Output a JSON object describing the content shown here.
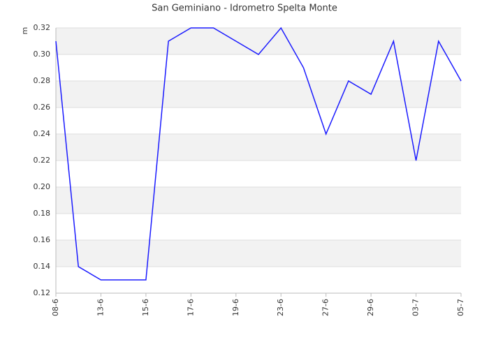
{
  "chart_data": {
    "type": "line",
    "title": "San Geminiano - Idrometro Spelta Monte",
    "y_label": "m",
    "categories": [
      "08-6",
      null,
      "13-6",
      null,
      "15-6",
      null,
      "17-6",
      null,
      "19-6",
      null,
      "23-6",
      null,
      "27-6",
      null,
      "29-6",
      null,
      "03-7",
      null,
      "05-7"
    ],
    "values": [
      0.31,
      0.14,
      0.13,
      0.13,
      0.13,
      0.31,
      0.32,
      0.32,
      0.31,
      0.3,
      0.32,
      0.29,
      0.24,
      0.28,
      0.27,
      0.31,
      0.22,
      0.31,
      0.28
    ],
    "color": "#1a1aff",
    "ylim": [
      0.12,
      0.32
    ],
    "yticks": [
      0.12,
      0.14,
      0.16,
      0.18,
      {
        "value": 0.2,
        "label": "0.20"
      },
      0.22,
      0.24,
      0.26,
      0.28,
      {
        "value": 0.3,
        "label": "0.30"
      },
      0.32
    ],
    "grid": true
  }
}
